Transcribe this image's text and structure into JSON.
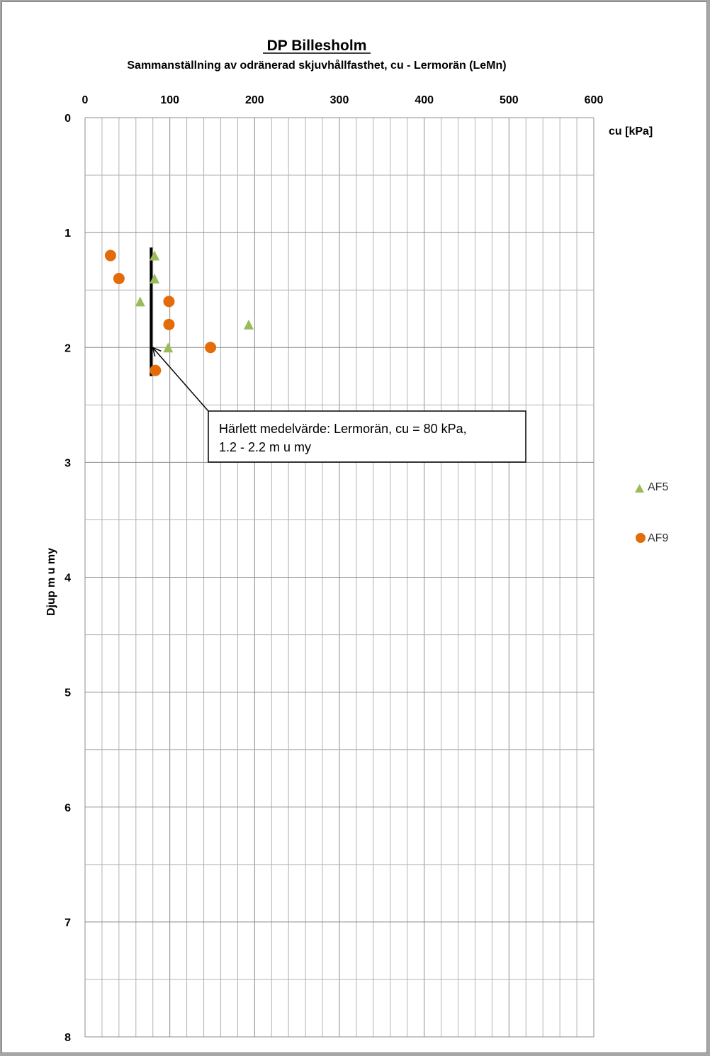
{
  "chart_data": {
    "type": "scatter",
    "title": "DP Billesholm",
    "subtitle": "Sammanställning av odränerad skjuvhållfasthet, cu - Lermorän (LeMn)",
    "xlabel": "cu [kPa]",
    "ylabel": "Djup m u my",
    "xlim": [
      0,
      600
    ],
    "ylim": [
      0,
      8
    ],
    "y_inverted": true,
    "x_axis_position": "top",
    "x_ticks": [
      0,
      100,
      200,
      300,
      400,
      500,
      600
    ],
    "y_ticks": [
      0,
      1,
      2,
      3,
      4,
      5,
      6,
      7,
      8
    ],
    "grid": true,
    "legend_position": "right",
    "series": [
      {
        "name": "AF5",
        "marker": "triangle",
        "color": "#9bbb59",
        "points": [
          {
            "x": 82,
            "y": 1.2
          },
          {
            "x": 82,
            "y": 1.4
          },
          {
            "x": 65,
            "y": 1.6
          },
          {
            "x": 193,
            "y": 1.8
          },
          {
            "x": 98,
            "y": 2.0
          }
        ]
      },
      {
        "name": "AF9",
        "marker": "circle",
        "color": "#e36c09",
        "points": [
          {
            "x": 30,
            "y": 1.2
          },
          {
            "x": 40,
            "y": 1.4
          },
          {
            "x": 99,
            "y": 1.6
          },
          {
            "x": 99,
            "y": 1.8
          },
          {
            "x": 148,
            "y": 2.0
          },
          {
            "x": 83,
            "y": 2.2
          }
        ]
      }
    ],
    "mean_line": {
      "x": 78,
      "y_from": 1.13,
      "y_to": 2.25,
      "color": "#000000"
    },
    "annotation": {
      "lines": [
        "Härlett medelvärde:  Lermorän,  cu = 80 kPa,",
        "1.2 - 2.2 m u my"
      ],
      "arrow_target": {
        "x": 78,
        "y": 2.0
      }
    }
  }
}
